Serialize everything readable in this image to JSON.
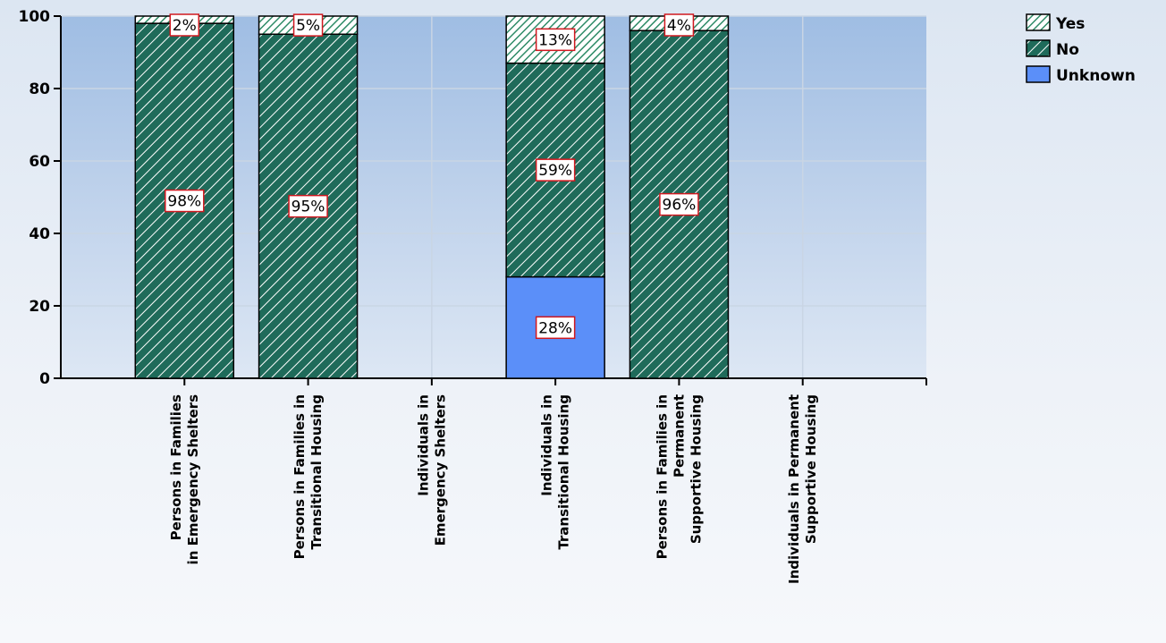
{
  "chart_data": {
    "type": "bar",
    "stacked": true,
    "categories": [
      [
        "Persons in Families",
        "in Emergency Shelters"
      ],
      [
        "Persons in Families in",
        "Transitional Housing"
      ],
      [
        "Individuals in",
        "Emergency Shelters"
      ],
      [
        "Individuals in",
        "Transitional Housing"
      ],
      [
        "Persons in Families in",
        "Permanent",
        "Supportive Housing"
      ],
      [
        "Individuals in Permanent",
        "Supportive Housing"
      ]
    ],
    "series": [
      {
        "name": "Unknown",
        "values": [
          0,
          0,
          0,
          28,
          0,
          0
        ],
        "labels": [
          "",
          "",
          "",
          "28%",
          "",
          ""
        ],
        "color": "#5b8ff9",
        "pattern": "solid"
      },
      {
        "name": "No",
        "values": [
          98,
          95,
          0,
          59,
          96,
          0
        ],
        "labels": [
          "98%",
          "95%",
          "",
          "59%",
          "96%",
          ""
        ],
        "color": "#1f6b5a",
        "pattern": "hatch-dense"
      },
      {
        "name": "Yes",
        "values": [
          2,
          5,
          0,
          13,
          4,
          0
        ],
        "labels": [
          "2%",
          "5%",
          "",
          "13%",
          "4%",
          ""
        ],
        "color": "#2e8b67",
        "pattern": "hatch-light"
      }
    ],
    "legend_order": [
      "Yes",
      "No",
      "Unknown"
    ],
    "legend_position": "top-right",
    "ylim": [
      0,
      100
    ],
    "yticks": [
      0,
      20,
      40,
      60,
      80,
      100
    ],
    "grid": true,
    "title": "",
    "xlabel": "",
    "ylabel": ""
  }
}
